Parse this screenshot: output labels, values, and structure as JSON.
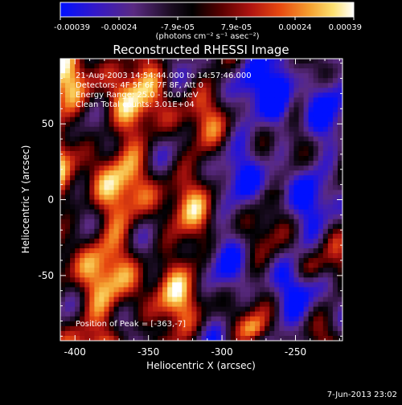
{
  "colorbar": {
    "ticks": [
      "-0.00039",
      "-0.00024",
      "-7.9e-05",
      "7.9e-05",
      "0.00024",
      "0.00039"
    ],
    "units": "(photons cm⁻² s⁻¹ asec⁻²)",
    "min": -0.00039,
    "max": 0.00039,
    "palette": [
      "#0010ff",
      "#3a1aa0",
      "#5a2a82",
      "#000000",
      "#5a0000",
      "#a01010",
      "#e04010",
      "#f08020",
      "#f8c040",
      "#ffffc8",
      "#ffffff"
    ]
  },
  "chart_data": {
    "type": "heatmap",
    "title": "Reconstructed RHESSI Image",
    "xlabel": "Heliocentric X (arcsec)",
    "ylabel": "Heliocentric Y (arcsec)",
    "xlim": [
      -410,
      -218
    ],
    "ylim": [
      -93,
      93
    ],
    "xticks": [
      -400,
      -350,
      -300,
      -250
    ],
    "yticks": [
      -50,
      0,
      50
    ],
    "xtick_labels": [
      "-400",
      "-350",
      "-300",
      "-250"
    ],
    "ytick_labels": [
      "-50",
      "0",
      "50"
    ],
    "annotations": [
      "21-Aug-2003 14:54:44.000 to 14:57:46.000",
      "Detectors: 4F 5F 6F 7F 8F, Att 0",
      "Energy Range: 25.0 - 50.0 keV",
      "Clean     Total counts: 3.01E+04",
      "Position of Peak = [-363,-7]"
    ]
  },
  "timestamp": "7-Jun-2013 23:02"
}
